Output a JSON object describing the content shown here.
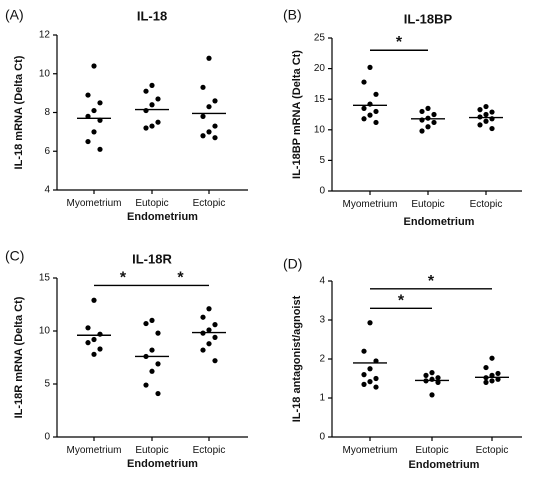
{
  "chart_data": [
    {
      "type": "scatter",
      "panel_label": "(A)",
      "title": "IL-18",
      "ylabel": "IL-18 mRNA (Delta Ct)",
      "xlabel": "Endometrium",
      "categories": [
        "Myometrium",
        "Eutopic",
        "Ectopic"
      ],
      "ylim": [
        4,
        12
      ],
      "yticks": [
        4,
        6,
        8,
        10,
        12
      ],
      "ytick_labels": [
        "4",
        "6",
        "8",
        "10",
        "12"
      ],
      "series": [
        {
          "values": [
            10.4,
            8.9,
            8.5,
            8.1,
            7.8,
            7.6,
            7.0,
            6.5,
            6.1
          ]
        },
        {
          "values": [
            9.4,
            9.1,
            8.7,
            8.4,
            8.1,
            7.5,
            7.3,
            7.2
          ]
        },
        {
          "values": [
            10.8,
            9.3,
            8.6,
            8.3,
            7.8,
            7.3,
            7.0,
            6.8,
            6.7
          ]
        }
      ],
      "means": [
        7.7,
        8.15,
        7.95
      ],
      "significance": []
    },
    {
      "type": "scatter",
      "panel_label": "(B)",
      "title": "IL-18BP",
      "ylabel": "IL-18BP mRNA (Delta Ct)",
      "xlabel": "Endometrium",
      "categories": [
        "Myometrium",
        "Eutopic",
        "Ectopic"
      ],
      "ylim": [
        0,
        25
      ],
      "yticks": [
        0,
        5,
        10,
        15,
        20,
        25
      ],
      "ytick_labels": [
        "0",
        "5",
        "10",
        "15",
        "20",
        "25"
      ],
      "series": [
        {
          "values": [
            20.2,
            17.8,
            15.8,
            14.2,
            13.5,
            13.0,
            12.4,
            11.8,
            11.2
          ]
        },
        {
          "values": [
            13.5,
            13.0,
            12.5,
            11.9,
            11.6,
            11.2,
            10.5,
            9.8
          ]
        },
        {
          "values": [
            13.8,
            13.3,
            12.9,
            12.5,
            12.1,
            11.8,
            11.4,
            10.8,
            10.2
          ]
        }
      ],
      "means": [
        14.0,
        11.8,
        12.0
      ],
      "significance": [
        {
          "from": 0,
          "to": 1,
          "y": 23.0,
          "label": "*"
        }
      ]
    },
    {
      "type": "scatter",
      "panel_label": "(C)",
      "title": "IL-18R",
      "ylabel": "IL-18R mRNA (Delta Ct)",
      "xlabel": "Endometrium",
      "categories": [
        "Myometrium",
        "Eutopic",
        "Ectopic"
      ],
      "ylim": [
        0,
        15
      ],
      "yticks": [
        0,
        5,
        10,
        15
      ],
      "ytick_labels": [
        "0",
        "5",
        "10",
        "15"
      ],
      "series": [
        {
          "values": [
            12.9,
            10.3,
            9.7,
            9.2,
            8.9,
            8.3,
            7.8
          ]
        },
        {
          "values": [
            11.0,
            10.7,
            9.8,
            8.2,
            7.6,
            6.9,
            6.2,
            4.9,
            4.1
          ]
        },
        {
          "values": [
            12.1,
            11.3,
            10.6,
            10.1,
            9.8,
            9.4,
            8.8,
            8.2,
            7.2
          ]
        }
      ],
      "means": [
        9.6,
        7.6,
        9.85
      ],
      "significance": [
        {
          "from": 0,
          "to": 1,
          "y": 14.3,
          "label": "*"
        },
        {
          "from": 1,
          "to": 2,
          "y": 14.3,
          "label": "*"
        }
      ]
    },
    {
      "type": "scatter",
      "panel_label": "(D)",
      "ylabel": "IL-18 antagonist/agnoist",
      "xlabel": "Endometrium",
      "categories": [
        "Myometrium",
        "Eutopic",
        "Ectopic"
      ],
      "ylim": [
        0,
        4
      ],
      "yticks": [
        0,
        1,
        2,
        3,
        4
      ],
      "ytick_labels": [
        "0",
        "1",
        "2",
        "3",
        "4"
      ],
      "series": [
        {
          "values": [
            2.93,
            2.2,
            1.95,
            1.75,
            1.6,
            1.5,
            1.42,
            1.35,
            1.28
          ]
        },
        {
          "values": [
            1.65,
            1.58,
            1.52,
            1.48,
            1.44,
            1.4,
            1.08
          ]
        },
        {
          "values": [
            2.02,
            1.78,
            1.63,
            1.58,
            1.52,
            1.48,
            1.44,
            1.4
          ]
        }
      ],
      "means": [
        1.9,
        1.45,
        1.53
      ],
      "significance": [
        {
          "from": 0,
          "to": 1,
          "y": 3.3,
          "label": "*"
        },
        {
          "from": 0,
          "to": 2,
          "y": 3.8,
          "label": "*"
        }
      ]
    }
  ]
}
